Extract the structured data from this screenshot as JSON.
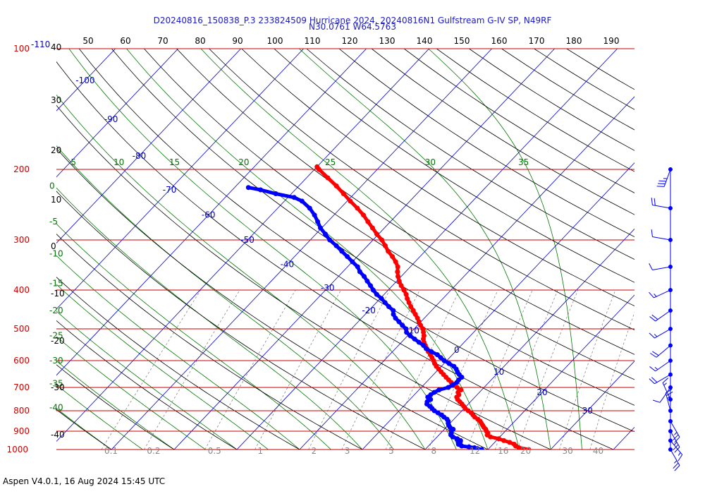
{
  "header": {
    "title_line1": "D20240816_150838_P.3 233824509 Hurricane 2024, 20240816N1 Gulfstream G-IV SP, N49RF",
    "title_line2": "N30.0761 W64.5763"
  },
  "footer": {
    "text": "Aspen V4.0.1, 16 Aug 2024  15:45 UTC"
  },
  "colors": {
    "temperature": "#ff0000",
    "dewpoint": "#0000ff",
    "isobar": "#cc0000",
    "isotherm": "#0000cc",
    "mixing_ratio": "#888888",
    "dry_adiabat": "#000000",
    "moist_adiabat": "#007700",
    "title": "#1a1acc"
  },
  "chart_data": {
    "type": "skew-t",
    "pressure_axis": {
      "unit": "hPa",
      "scale": "log",
      "range": [
        100,
        1000
      ],
      "levels": [
        100,
        200,
        300,
        400,
        500,
        600,
        700,
        800,
        900,
        1000
      ],
      "labels": [
        "100",
        "200",
        "300",
        "400",
        "500",
        "600",
        "700",
        "800",
        "900",
        "1000"
      ],
      "extra_label_at_100": "-110"
    },
    "isotherms": [
      {
        "t": -100,
        "label": "-100"
      },
      {
        "t": -90,
        "label": "-90"
      },
      {
        "t": -80,
        "label": "-80"
      },
      {
        "t": -70,
        "label": "-70"
      },
      {
        "t": -60,
        "label": "-60"
      },
      {
        "t": -50,
        "label": "-50"
      },
      {
        "t": -40,
        "label": "-40"
      },
      {
        "t": -30,
        "label": "-30"
      },
      {
        "t": -20,
        "label": "-20"
      },
      {
        "t": -10,
        "label": "-10"
      },
      {
        "t": 0,
        "label": "0"
      },
      {
        "t": 10,
        "label": "10"
      },
      {
        "t": 20,
        "label": "20"
      },
      {
        "t": 30,
        "label": "30"
      }
    ],
    "top_theta_labels": [
      "50",
      "60",
      "70",
      "80",
      "90",
      "100",
      "110",
      "120",
      "130",
      "140",
      "150",
      "160",
      "170",
      "180",
      "190"
    ],
    "left_theta_labels": [
      "40",
      "30",
      "20",
      "10",
      "0",
      "-10",
      "-20",
      "-30",
      "-40"
    ],
    "moist_adiabats": [
      {
        "theta_w": -40,
        "label": "-40"
      },
      {
        "theta_w": -35,
        "label": "-35"
      },
      {
        "theta_w": -30,
        "label": "-30"
      },
      {
        "theta_w": -25,
        "label": "-25"
      },
      {
        "theta_w": -20,
        "label": "-20"
      },
      {
        "theta_w": -15,
        "label": "-15"
      },
      {
        "theta_w": -10,
        "label": "-10"
      },
      {
        "theta_w": -5,
        "label": "-5"
      },
      {
        "theta_w": 0,
        "label": "0"
      },
      {
        "theta_w": 5,
        "label": "5"
      },
      {
        "theta_w": 10,
        "label": "10"
      },
      {
        "theta_w": 15,
        "label": "15"
      },
      {
        "theta_w": 20,
        "label": "20"
      },
      {
        "theta_w": 25,
        "label": "25"
      },
      {
        "theta_w": 30,
        "label": "30"
      },
      {
        "theta_w": 35,
        "label": "35"
      }
    ],
    "mixing_ratios": [
      {
        "w": 0.1,
        "label": "0.1"
      },
      {
        "w": 0.2,
        "label": "0.2"
      },
      {
        "w": 0.5,
        "label": "0.5"
      },
      {
        "w": 1,
        "label": "1"
      },
      {
        "w": 2,
        "label": "2"
      },
      {
        "w": 3,
        "label": "3"
      },
      {
        "w": 5,
        "label": "5"
      },
      {
        "w": 8,
        "label": "8"
      },
      {
        "w": 12,
        "label": "12"
      },
      {
        "w": 16,
        "label": "16"
      },
      {
        "w": 20,
        "label": "20"
      },
      {
        "w": 30,
        "label": "30"
      },
      {
        "w": 40,
        "label": "40"
      }
    ],
    "series": [
      {
        "key": "temperature",
        "points": [
          [
            1000,
            26.5
          ],
          [
            990,
            24.7
          ],
          [
            980,
            23.9
          ],
          [
            970,
            23.4
          ],
          [
            960,
            22.4
          ],
          [
            950,
            21.2
          ],
          [
            940,
            20.1
          ],
          [
            930,
            18.5
          ],
          [
            920,
            17.7
          ],
          [
            910,
            17.5
          ],
          [
            900,
            17.0
          ],
          [
            890,
            16.6
          ],
          [
            880,
            16.0
          ],
          [
            870,
            15.5
          ],
          [
            860,
            15.0
          ],
          [
            850,
            14.5
          ],
          [
            840,
            13.8
          ],
          [
            830,
            13.0
          ],
          [
            820,
            12.4
          ],
          [
            810,
            11.8
          ],
          [
            800,
            11.0
          ],
          [
            790,
            10.2
          ],
          [
            780,
            9.6
          ],
          [
            770,
            9.0
          ],
          [
            760,
            8.3
          ],
          [
            750,
            7.6
          ],
          [
            740,
            7.1
          ],
          [
            730,
            7.1
          ],
          [
            720,
            6.6
          ],
          [
            710,
            6.7
          ],
          [
            700,
            5.7
          ],
          [
            690,
            4.7
          ],
          [
            680,
            4.0
          ],
          [
            670,
            3.2
          ],
          [
            660,
            2.4
          ],
          [
            650,
            1.6
          ],
          [
            640,
            0.8
          ],
          [
            630,
            0.0
          ],
          [
            620,
            -0.8
          ],
          [
            610,
            -1.5
          ],
          [
            600,
            -2.1
          ],
          [
            590,
            -2.8
          ],
          [
            580,
            -3.5
          ],
          [
            570,
            -4.3
          ],
          [
            560,
            -5.0
          ],
          [
            550,
            -5.7
          ],
          [
            540,
            -6.4
          ],
          [
            530,
            -7.0
          ],
          [
            520,
            -7.4
          ],
          [
            510,
            -8.0
          ],
          [
            500,
            -8.6
          ],
          [
            490,
            -9.5
          ],
          [
            480,
            -10.3
          ],
          [
            470,
            -11.1
          ],
          [
            460,
            -12.0
          ],
          [
            450,
            -12.9
          ],
          [
            440,
            -13.9
          ],
          [
            430,
            -14.8
          ],
          [
            420,
            -15.7
          ],
          [
            410,
            -16.5
          ],
          [
            400,
            -17.5
          ],
          [
            390,
            -18.6
          ],
          [
            380,
            -19.6
          ],
          [
            370,
            -20.5
          ],
          [
            360,
            -21.3
          ],
          [
            350,
            -22.0
          ],
          [
            340,
            -23.1
          ],
          [
            330,
            -24.4
          ],
          [
            320,
            -25.9
          ],
          [
            310,
            -27.2
          ],
          [
            300,
            -28.6
          ],
          [
            290,
            -30.3
          ],
          [
            280,
            -31.9
          ],
          [
            270,
            -33.6
          ],
          [
            260,
            -35.3
          ],
          [
            250,
            -37.3
          ],
          [
            240,
            -39.5
          ],
          [
            230,
            -41.7
          ],
          [
            220,
            -44.0
          ],
          [
            210,
            -46.6
          ],
          [
            200,
            -49.3
          ],
          [
            197,
            -50.0
          ]
        ]
      },
      {
        "key": "dewpoint",
        "points": [
          [
            1000,
            19.0
          ],
          [
            995,
            18.2
          ],
          [
            990,
            17.6
          ],
          [
            985,
            16.6
          ],
          [
            980,
            15.3
          ],
          [
            975,
            15.0
          ],
          [
            970,
            14.5
          ],
          [
            965,
            14.6
          ],
          [
            960,
            14.2
          ],
          [
            955,
            14.4
          ],
          [
            950,
            14.3
          ],
          [
            945,
            13.6
          ],
          [
            940,
            13.5
          ],
          [
            930,
            12.5
          ],
          [
            920,
            11.9
          ],
          [
            910,
            11.7
          ],
          [
            900,
            11.4
          ],
          [
            890,
            11.4
          ],
          [
            880,
            10.6
          ],
          [
            870,
            10.1
          ],
          [
            860,
            9.7
          ],
          [
            850,
            9.4
          ],
          [
            840,
            8.9
          ],
          [
            830,
            8.1
          ],
          [
            820,
            7.4
          ],
          [
            810,
            6.5
          ],
          [
            800,
            5.6
          ],
          [
            790,
            4.9
          ],
          [
            780,
            4.2
          ],
          [
            770,
            3.4
          ],
          [
            760,
            3.1
          ],
          [
            750,
            3.3
          ],
          [
            740,
            2.5
          ],
          [
            730,
            2.6
          ],
          [
            720,
            2.8
          ],
          [
            710,
            3.2
          ],
          [
            700,
            4.3
          ],
          [
            690,
            4.6
          ],
          [
            680,
            4.9
          ],
          [
            670,
            4.8
          ],
          [
            660,
            4.9
          ],
          [
            650,
            4.1
          ],
          [
            640,
            3.4
          ],
          [
            630,
            2.8
          ],
          [
            620,
            2.0
          ],
          [
            610,
            0.8
          ],
          [
            600,
            -0.4
          ],
          [
            590,
            -1.4
          ],
          [
            580,
            -2.4
          ],
          [
            570,
            -3.8
          ],
          [
            560,
            -5.1
          ],
          [
            550,
            -6.0
          ],
          [
            540,
            -7.2
          ],
          [
            530,
            -8.4
          ],
          [
            520,
            -9.6
          ],
          [
            510,
            -10.7
          ],
          [
            500,
            -11.3
          ],
          [
            490,
            -12.4
          ],
          [
            480,
            -13.5
          ],
          [
            470,
            -14.6
          ],
          [
            460,
            -15.5
          ],
          [
            450,
            -16.1
          ],
          [
            440,
            -17.4
          ],
          [
            430,
            -18.6
          ],
          [
            420,
            -19.8
          ],
          [
            410,
            -21.2
          ],
          [
            400,
            -22.4
          ],
          [
            390,
            -23.5
          ],
          [
            380,
            -24.7
          ],
          [
            370,
            -25.9
          ],
          [
            360,
            -27.3
          ],
          [
            350,
            -28.4
          ],
          [
            340,
            -30.0
          ],
          [
            330,
            -31.6
          ],
          [
            320,
            -33.3
          ],
          [
            310,
            -35.0
          ],
          [
            300,
            -36.9
          ],
          [
            290,
            -38.5
          ],
          [
            280,
            -40.2
          ],
          [
            270,
            -41.6
          ],
          [
            260,
            -43.1
          ],
          [
            250,
            -44.9
          ],
          [
            240,
            -47.2
          ],
          [
            235,
            -49.0
          ],
          [
            230,
            -52.5
          ],
          [
            225,
            -55.5
          ],
          [
            222,
            -57.8
          ]
        ]
      }
    ],
    "wind_barbs": [
      {
        "pressure": 200,
        "speed_kt": 35,
        "dir_deg": 200
      },
      {
        "pressure": 250,
        "speed_kt": 20,
        "dir_deg": 280
      },
      {
        "pressure": 300,
        "speed_kt": 10,
        "dir_deg": 280
      },
      {
        "pressure": 350,
        "speed_kt": 10,
        "dir_deg": 260
      },
      {
        "pressure": 400,
        "speed_kt": 15,
        "dir_deg": 245
      },
      {
        "pressure": 450,
        "speed_kt": 20,
        "dir_deg": 235
      },
      {
        "pressure": 500,
        "speed_kt": 15,
        "dir_deg": 240
      },
      {
        "pressure": 550,
        "speed_kt": 20,
        "dir_deg": 230
      },
      {
        "pressure": 600,
        "speed_kt": 15,
        "dir_deg": 235
      },
      {
        "pressure": 650,
        "speed_kt": 20,
        "dir_deg": 240
      },
      {
        "pressure": 700,
        "speed_kt": 10,
        "dir_deg": 215
      },
      {
        "pressure": 750,
        "speed_kt": 15,
        "dir_deg": 335
      },
      {
        "pressure": 800,
        "speed_kt": 25,
        "dir_deg": 345
      },
      {
        "pressure": 850,
        "speed_kt": 25,
        "dir_deg": 150
      },
      {
        "pressure": 900,
        "speed_kt": 25,
        "dir_deg": 150
      },
      {
        "pressure": 950,
        "speed_kt": 15,
        "dir_deg": 140
      },
      {
        "pressure": 1000,
        "speed_kt": 25,
        "dir_deg": 150
      }
    ]
  }
}
